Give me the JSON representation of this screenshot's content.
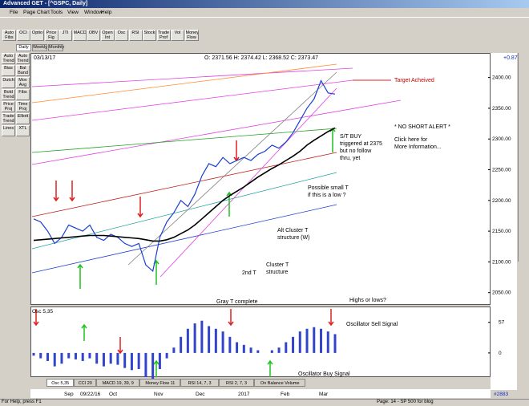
{
  "window": {
    "title": "Advanced GET - [^GSPC, Daily]"
  },
  "menu": [
    "File",
    "Page",
    "Chart",
    "Tools",
    "View",
    "Window",
    "Help"
  ],
  "toolbar": [
    "Auto Fibs",
    "OCI",
    "Optio",
    "Price Fig",
    "JTI",
    "MACD",
    "OBV",
    "Open Int",
    "Osc",
    "RSI",
    "Stock",
    "Trade Prof",
    "Vol",
    "Money Flow"
  ],
  "period_tabs": [
    "Daily",
    "Weekly",
    "Monthly"
  ],
  "sidebar": [
    "Auto Trend",
    "Auto Trend",
    "Bias",
    "Bal Band",
    "Dutch",
    "Mov Avg",
    "Bold Trend",
    "Fibs",
    "Price Proj",
    "Time Proj",
    "Trade Trend",
    "Elliott",
    "Lines",
    "XTL"
  ],
  "header": {
    "date": "03/13/17",
    "ohlc": "O: 2371.56   H: 2374.42   L: 2368.52   C: 2373.47",
    "change": "+0.87"
  },
  "annotations": [
    "Target Acheived",
    "* NO SHORT ALERT *",
    "Click here for",
    "More Information...",
    "S/T BUY",
    "triggered at 2375",
    "but no follow",
    "thru, yet",
    "Possible small T",
    "if this is a low ?",
    "Alt Cluster T",
    "structure (W)",
    "Cluster T",
    "structure",
    "2nd T",
    "Gray T complete",
    "Highs or lows?",
    "Oscillator Sell Signal",
    "Oscillator Buy Signal"
  ],
  "chart_data": {
    "type": "line",
    "series": [
      {
        "color": "#1a3fd0",
        "values": [
          2170,
          2165,
          2150,
          2130,
          2140,
          2160,
          2155,
          2150,
          2160,
          2140,
          2135,
          2145,
          2140,
          2130,
          2125,
          2130,
          2095,
          2085,
          2140,
          2165,
          2180,
          2200,
          2190,
          2210,
          2240,
          2260,
          2255,
          2270,
          2260,
          2265,
          2270,
          2265,
          2275,
          2280,
          2290,
          2285,
          2295,
          2310,
          2330,
          2350,
          2365,
          2395,
          2375,
          2373
        ]
      },
      {
        "color": "#000000",
        "values": [
          2135,
          2136,
          2137,
          2138,
          2139,
          2140,
          2141,
          2142,
          2143,
          2143,
          2143,
          2142,
          2141,
          2140,
          2139,
          2138,
          2136,
          2134,
          2134,
          2136,
          2140,
          2146,
          2152,
          2160,
          2170,
          2180,
          2190,
          2200,
          2208,
          2215,
          2222,
          2230,
          2238,
          2245,
          2252,
          2258,
          2265,
          2272,
          2280,
          2290,
          2298,
          2305,
          2312,
          2318
        ]
      }
    ],
    "ylim": [
      2030,
      2440
    ],
    "yticks": [
      {
        "value": 2050,
        "label": "2050.00"
      },
      {
        "value": 2100,
        "label": "2100.00"
      },
      {
        "value": 2150,
        "label": "2150.00"
      },
      {
        "value": 2200,
        "label": "2200.00"
      },
      {
        "value": 2250,
        "label": "2250.00"
      },
      {
        "value": 2300,
        "label": "2300.00"
      },
      {
        "value": 2350,
        "label": "2350.00"
      },
      {
        "value": 2400,
        "label": "2400.00"
      }
    ]
  },
  "oscillator": {
    "title": "Osc 5,35",
    "color": "#3344cc",
    "values": [
      -5,
      -10,
      -15,
      -25,
      -20,
      -10,
      -12,
      -15,
      -10,
      -20,
      -25,
      -20,
      -22,
      -28,
      -32,
      -30,
      -45,
      -48,
      -30,
      -10,
      10,
      30,
      45,
      55,
      60,
      50,
      45,
      40,
      30,
      20,
      15,
      10,
      5,
      0,
      5,
      10,
      20,
      30,
      40,
      45,
      48,
      45,
      40,
      35
    ],
    "ylim": [
      -45,
      85
    ],
    "yticks": [
      57,
      0
    ]
  },
  "indicator_tabs": [
    "Osc 5,35",
    "CCI 20",
    "MACD 19, 39, 9",
    "Money Flow 11",
    "RSI 14, 7, 3",
    "RSI 2, 7, 3",
    "On Balance Volume"
  ],
  "date_axis": [
    "Sep",
    "09/22/16",
    "Oct",
    "Nov",
    "Dec",
    "2017",
    "Feb",
    "Mar"
  ],
  "bar_count": "#2883",
  "status": {
    "left": "For Help, press F1",
    "right": "Page: 14 - SP 500 for blog"
  }
}
